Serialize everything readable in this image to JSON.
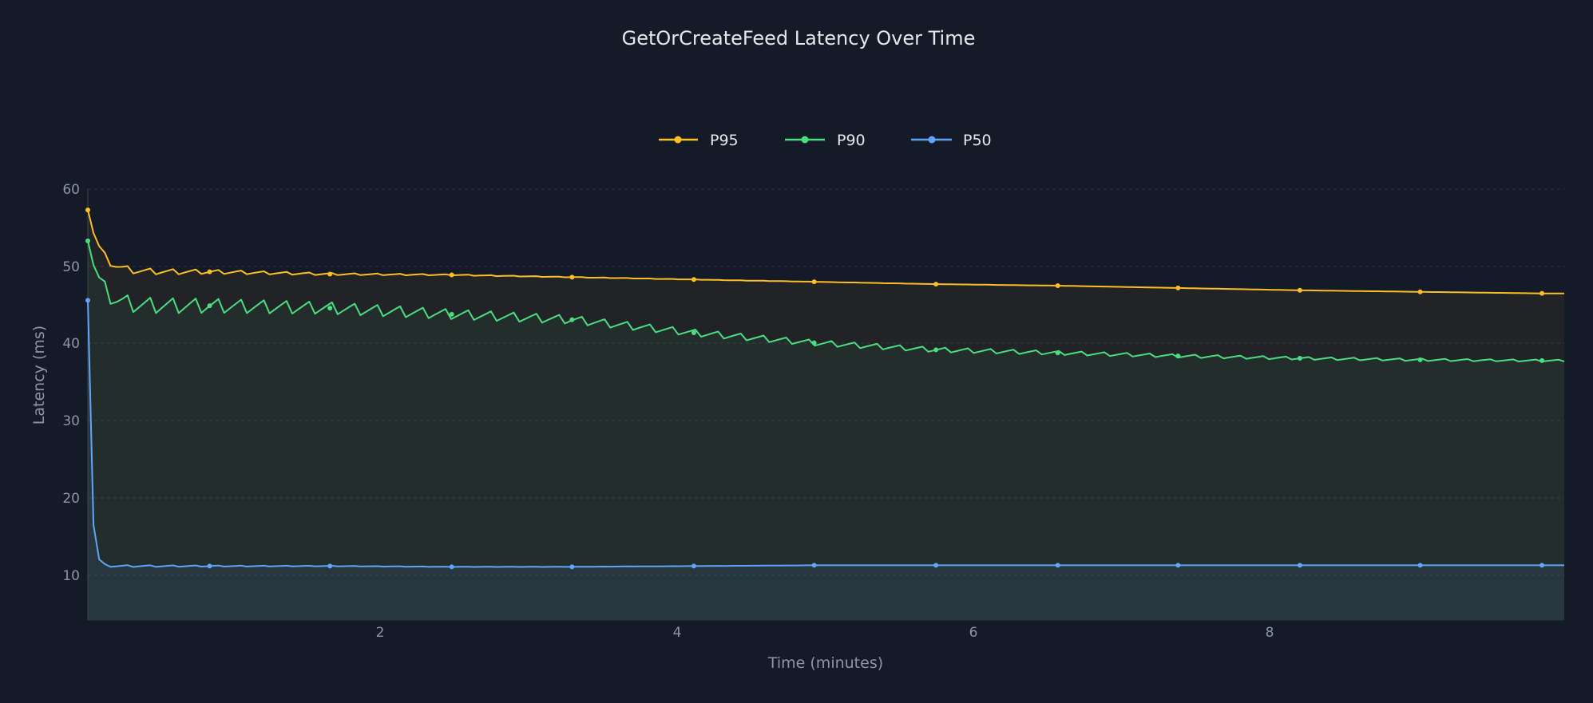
{
  "chart_data": {
    "type": "line",
    "title": "GetOrCreateFeed Latency Over Time",
    "xlabel": "Time (minutes)",
    "ylabel": "Latency (ms)",
    "xlim": [
      0.03,
      9.97
    ],
    "ylim": [
      4.3,
      60
    ],
    "x_ticks": [
      2,
      4,
      6,
      8
    ],
    "y_ticks": [
      10,
      20,
      30,
      40,
      50,
      60
    ],
    "grid": true,
    "legend_position": "top-center",
    "area_fill": true,
    "series": [
      {
        "name": "P95",
        "color": "#fbbf24",
        "x": [
          0.03,
          0.85,
          1.66,
          2.48,
          3.29,
          4.11,
          4.92,
          5.74,
          6.56,
          7.37,
          8.19,
          9.0,
          9.82
        ],
        "values": [
          57.3,
          49.3,
          49.0,
          48.9,
          48.6,
          48.3,
          48.0,
          47.7,
          47.5,
          47.2,
          46.9,
          46.7,
          46.5
        ],
        "peak_note": "sawtooth oscillation decaying from ~57 to ~49 during first minute"
      },
      {
        "name": "P90",
        "color": "#4ade80",
        "x": [
          0.03,
          0.85,
          1.66,
          2.48,
          3.29,
          4.11,
          4.92,
          5.74,
          6.56,
          7.37,
          8.19,
          9.0,
          9.82
        ],
        "values": [
          53.3,
          44.9,
          44.6,
          43.8,
          43.1,
          41.4,
          40.1,
          39.2,
          38.8,
          38.4,
          38.1,
          37.9,
          37.8
        ],
        "peak_note": "strong sawtooth oscillation (~2ms amplitude) damping over time"
      },
      {
        "name": "P50",
        "color": "#60a5fa",
        "x": [
          0.03,
          0.85,
          1.66,
          2.48,
          3.29,
          4.11,
          4.92,
          5.74,
          6.56,
          7.37,
          8.19,
          9.0,
          9.82
        ],
        "values": [
          45.6,
          11.2,
          11.2,
          11.1,
          11.1,
          11.2,
          11.3,
          11.3,
          11.3,
          11.3,
          11.3,
          11.3,
          11.3
        ],
        "peak_note": "drops sharply from ~45.6 to ~11 within first few seconds"
      }
    ]
  },
  "legend": [
    {
      "label": "P95",
      "color": "#fbbf24"
    },
    {
      "label": "P90",
      "color": "#4ade80"
    },
    {
      "label": "P50",
      "color": "#60a5fa"
    }
  ],
  "axes": {
    "x_tick_labels": [
      "2",
      "4",
      "6",
      "8"
    ],
    "y_tick_labels": [
      "10",
      "20",
      "30",
      "40",
      "50",
      "60"
    ]
  }
}
